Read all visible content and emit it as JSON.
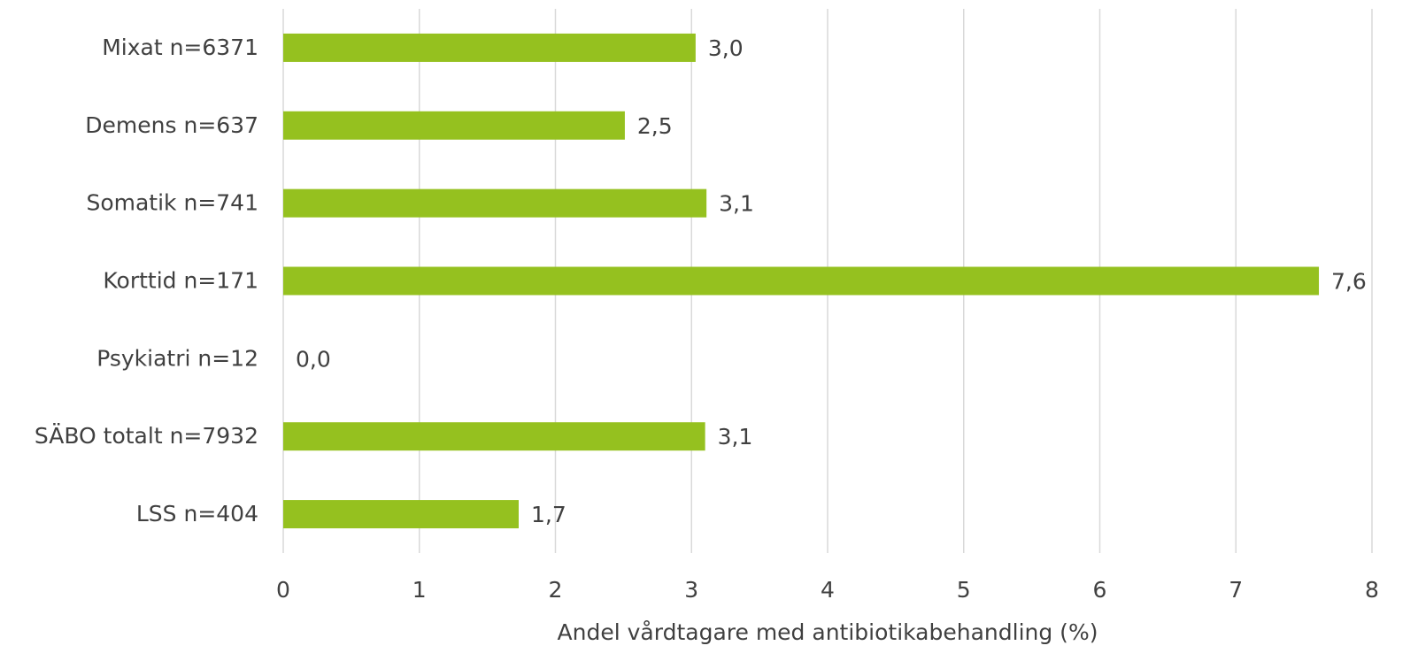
{
  "chart_data": {
    "type": "bar",
    "orientation": "horizontal",
    "categories": [
      "Mixat n=6371",
      "Demens n=637",
      "Somatik n=741",
      "Korttid n=171",
      "Psykiatri n=12",
      "SÄBO totalt n=7932",
      "LSS n=404"
    ],
    "values": [
      3.03,
      2.51,
      3.11,
      7.61,
      0,
      3.1,
      1.73
    ],
    "value_labels": [
      "3,0",
      "2,5",
      "3,1",
      "7,6",
      "0,0",
      "3,1",
      "1,7"
    ],
    "color": "#95c11f",
    "xlim": [
      0,
      8
    ],
    "xticks": [
      0,
      1,
      2,
      3,
      4,
      5,
      6,
      7,
      8
    ],
    "x_label": "Andel vårdtagare med antibiotikabehandling (%)",
    "grid": true
  }
}
